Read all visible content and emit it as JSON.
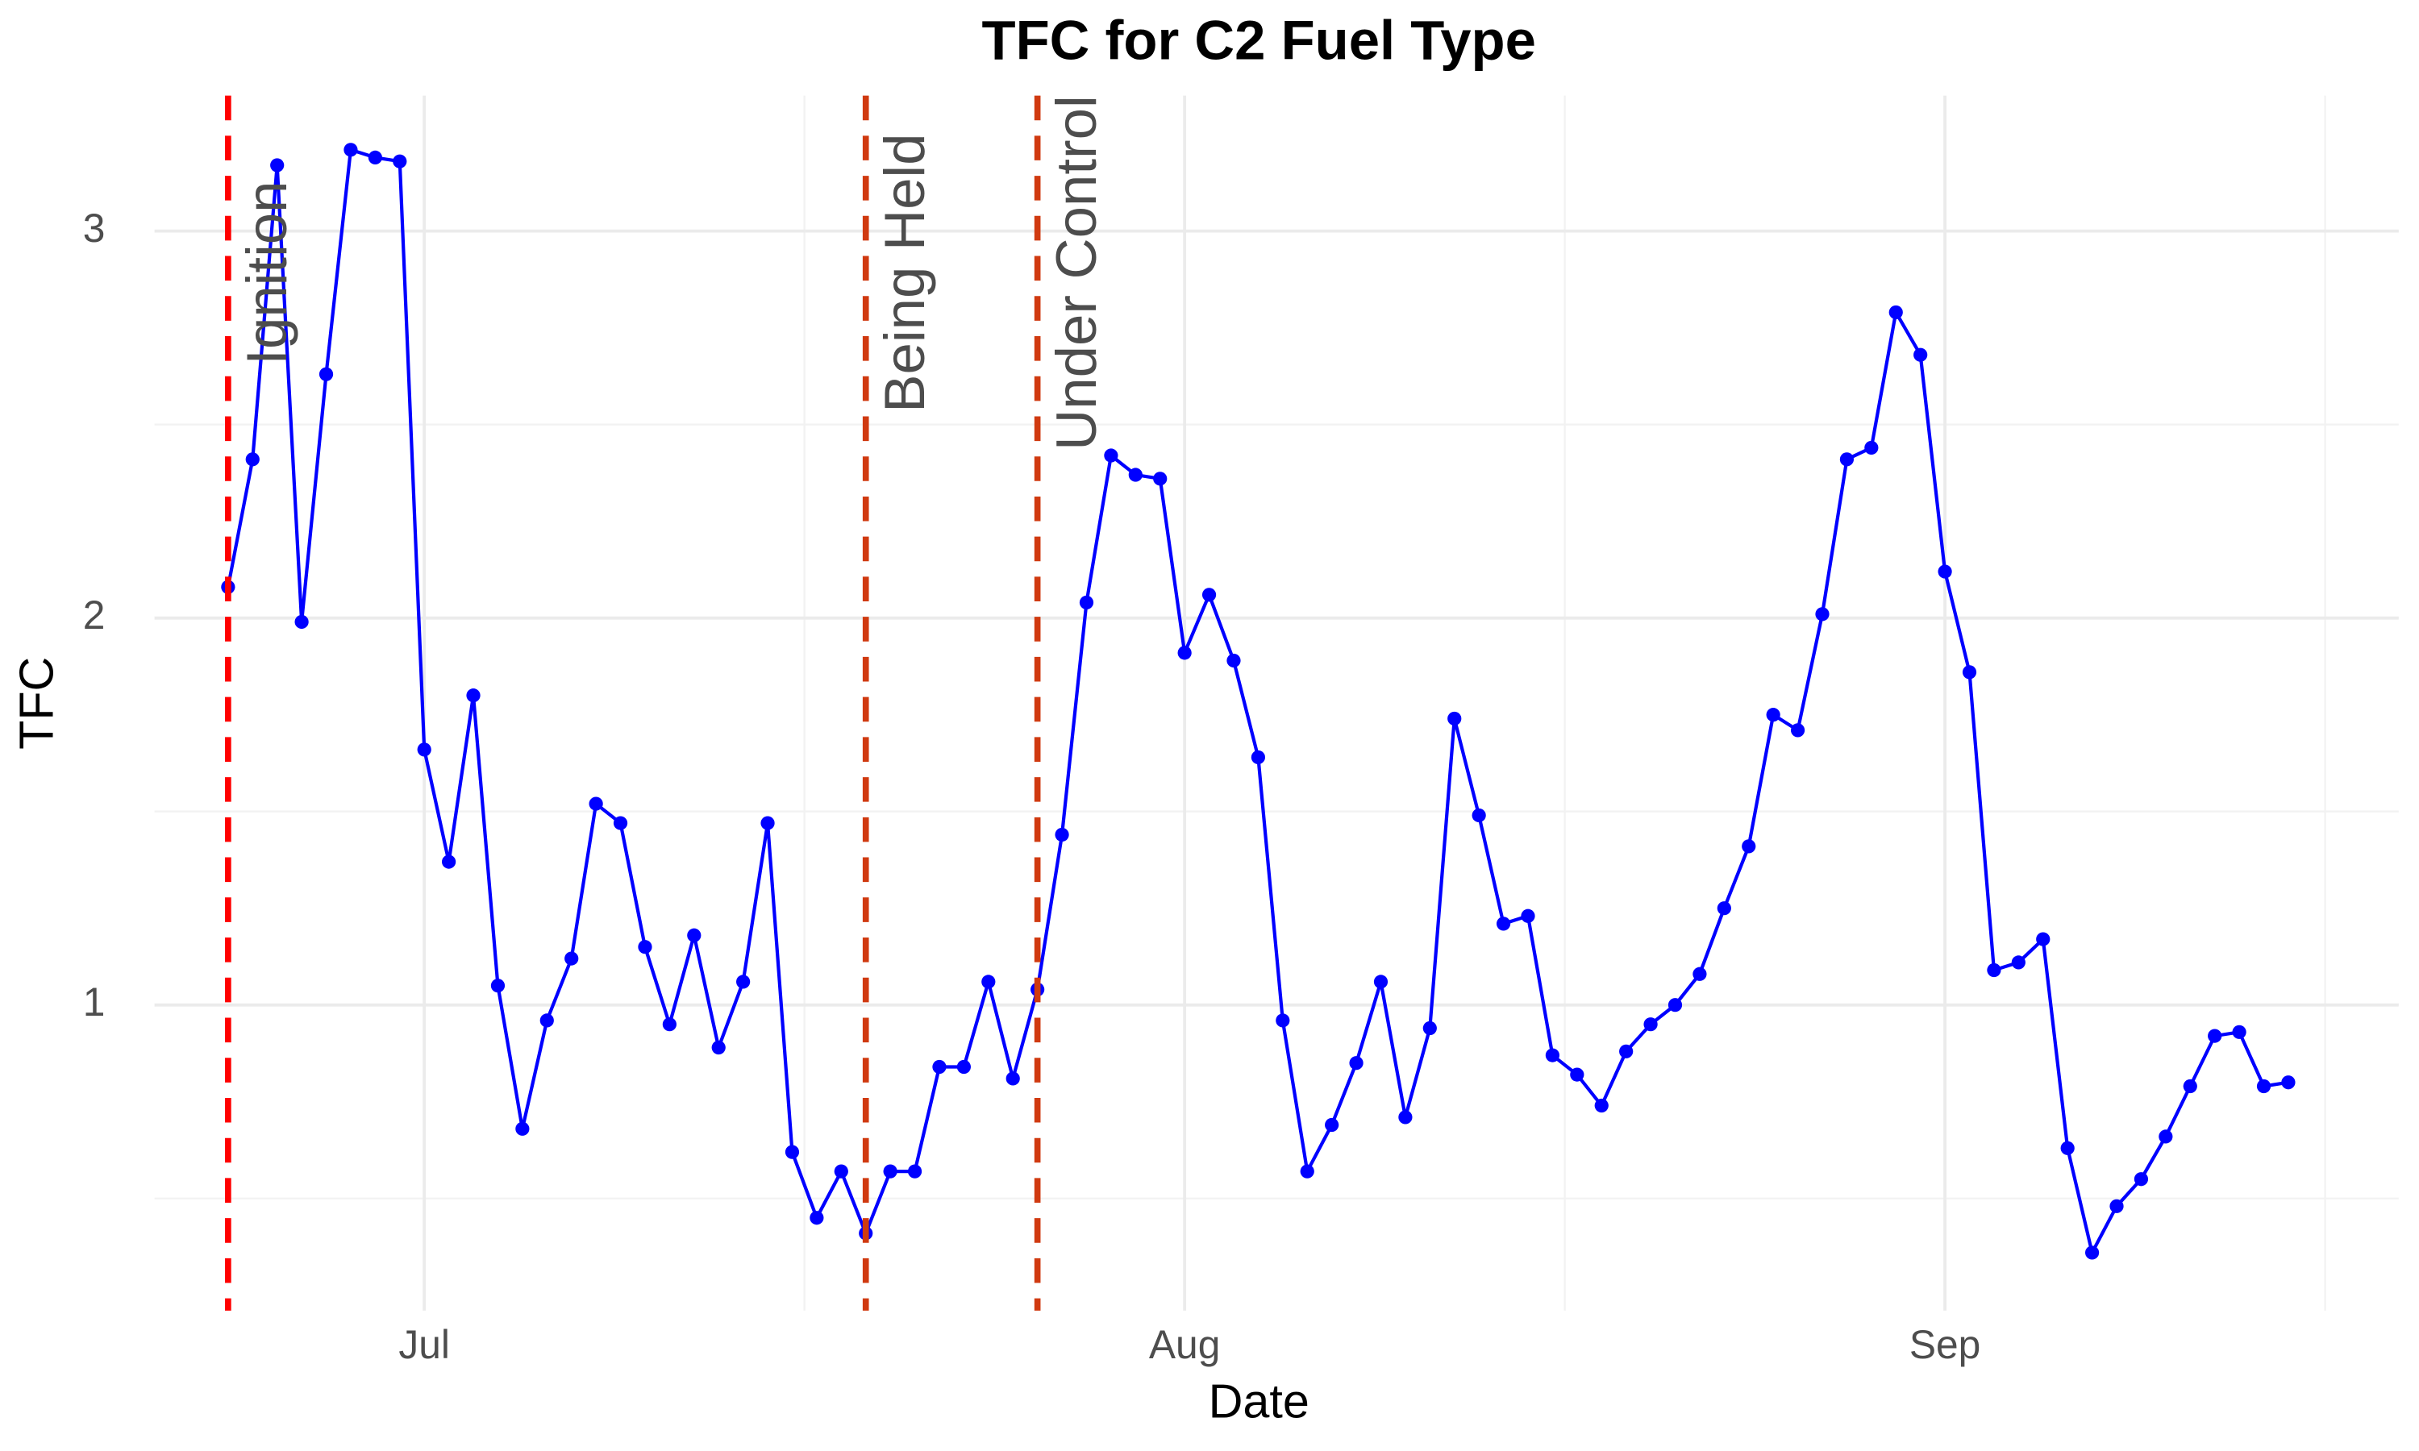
{
  "chart_data": {
    "type": "line",
    "title": "TFC for C2 Fuel Type",
    "x_label": "Date",
    "y_label": "TFC",
    "x": [
      -8,
      -7,
      -6,
      -5,
      -4,
      -3,
      -2,
      -1,
      0,
      1,
      2,
      3,
      4,
      5,
      6,
      7,
      8,
      9,
      10,
      11,
      12,
      13,
      14,
      15,
      16,
      17,
      18,
      19,
      20,
      21,
      22,
      23,
      24,
      25,
      26,
      27,
      28,
      29,
      30,
      31,
      32,
      33,
      34,
      35,
      36,
      37,
      38,
      39,
      40,
      41,
      42,
      43,
      44,
      45,
      46,
      47,
      48,
      49,
      50,
      51,
      52,
      53,
      54,
      55,
      56,
      57,
      58,
      59,
      60,
      61,
      62,
      63,
      64,
      65,
      66,
      67,
      68,
      69,
      70,
      71,
      72,
      73,
      74,
      75,
      76
    ],
    "series": [
      {
        "name": "TFC",
        "color": "#0000ff",
        "values": [
          2.08,
          2.41,
          3.17,
          1.99,
          2.63,
          3.21,
          3.19,
          3.18,
          1.66,
          1.37,
          1.8,
          1.05,
          0.68,
          0.96,
          1.12,
          1.52,
          1.47,
          1.15,
          0.95,
          1.18,
          0.89,
          1.06,
          1.47,
          0.62,
          0.45,
          0.57,
          0.41,
          0.57,
          0.57,
          0.84,
          0.84,
          1.06,
          0.81,
          1.04,
          1.44,
          2.04,
          2.42,
          2.37,
          2.36,
          1.91,
          2.06,
          1.89,
          1.64,
          0.96,
          0.57,
          0.69,
          0.85,
          1.06,
          0.71,
          0.94,
          1.74,
          1.49,
          1.21,
          1.23,
          0.87,
          0.82,
          0.74,
          0.88,
          0.95,
          1.0,
          1.08,
          1.25,
          1.41,
          1.75,
          1.71,
          2.01,
          2.41,
          2.44,
          2.79,
          2.68,
          2.12,
          1.86,
          1.09,
          1.11,
          1.17,
          0.63,
          0.36,
          0.48,
          0.55,
          0.66,
          0.79,
          0.92,
          0.93,
          0.79,
          0.8
        ]
      }
    ],
    "xlim": [
      -11,
      80.5
    ],
    "xticks": [
      {
        "value": 0,
        "label": "Jul"
      },
      {
        "value": 31,
        "label": "Aug"
      },
      {
        "value": 62,
        "label": "Sep"
      }
    ],
    "ylim": [
      0.21,
      3.35
    ],
    "yticks": [
      1,
      2,
      3
    ],
    "grid": true,
    "annotations": [
      {
        "x": -8,
        "label": "Ignition",
        "color": "#ff0000"
      },
      {
        "x": 18,
        "label": "Being Held",
        "color": "#d03a10"
      },
      {
        "x": 25,
        "label": "Under Control",
        "color": "#d03a10"
      }
    ]
  }
}
